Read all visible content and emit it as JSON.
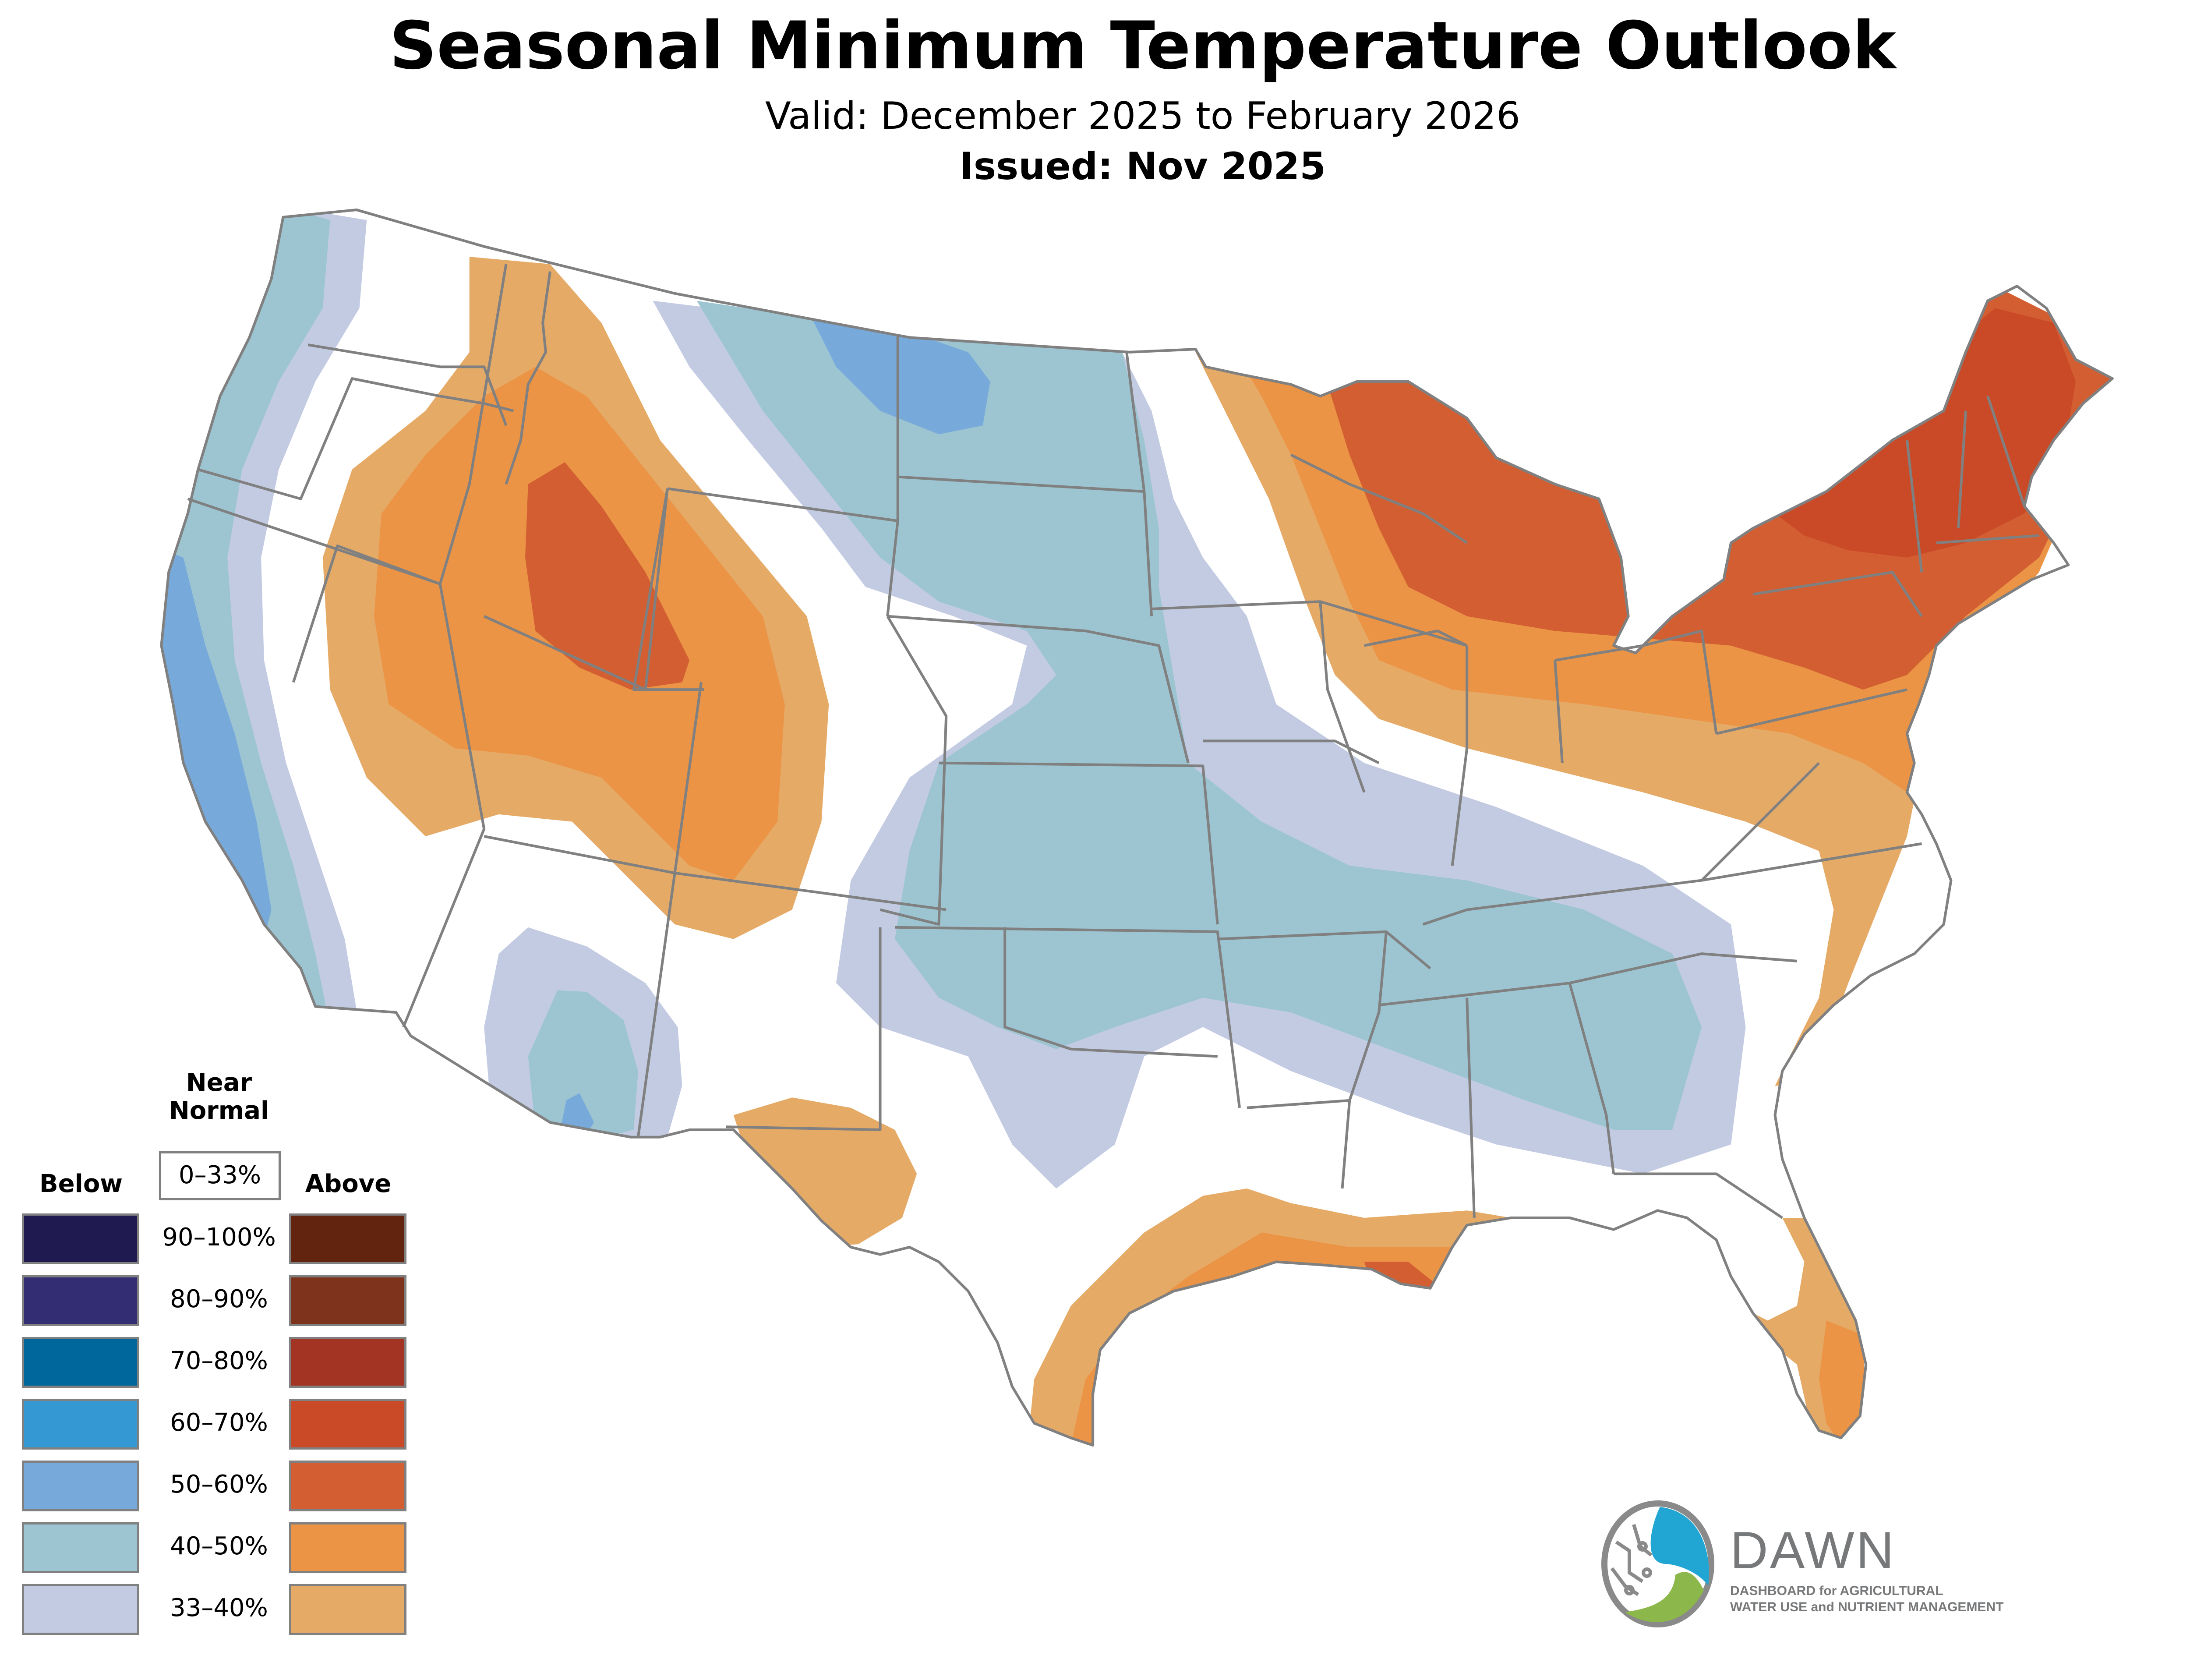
{
  "header": {
    "title": "Seasonal Minimum Temperature Outlook",
    "valid": "Valid: December 2025 to February 2026",
    "issued": "Issued: Nov 2025"
  },
  "legend": {
    "near_normal_heading_line1": "Near",
    "near_normal_heading_line2": "Normal",
    "near_normal_range": "0–33%",
    "below_heading": "Below",
    "above_heading": "Above",
    "rows": [
      {
        "range": "90–100%",
        "below_color": "#1f1a4f",
        "above_color": "#62230f"
      },
      {
        "range": "80–90%",
        "below_color": "#332d73",
        "above_color": "#7e341c"
      },
      {
        "range": "70–80%",
        "below_color": "#00679c",
        "above_color": "#a33424"
      },
      {
        "range": "60–70%",
        "below_color": "#3498d3",
        "above_color": "#ca4a27"
      },
      {
        "range": "50–60%",
        "below_color": "#77aadb",
        "above_color": "#d25e32"
      },
      {
        "range": "40–50%",
        "below_color": "#9cc5d1",
        "above_color": "#eb9446"
      },
      {
        "range": "33–40%",
        "below_color": "#c3cbe3",
        "above_color": "#e6aa67"
      }
    ]
  },
  "map": {
    "region": "Contiguous United States",
    "border_color": "#808080",
    "regions": [
      {
        "name": "Pacific coast",
        "category": "Below",
        "max_probability": "50–60%"
      },
      {
        "name": "Northern Rockies / Great Basin",
        "category": "Above",
        "max_probability": "50–60%"
      },
      {
        "name": "Northern Plains to Southern Plains and Tennessee Valley",
        "category": "Below",
        "max_probability": "50–60%"
      },
      {
        "name": "Southern Arizona",
        "category": "Below",
        "max_probability": "50–60%"
      },
      {
        "name": "West Texas",
        "category": "Above",
        "max_probability": "33–40%"
      },
      {
        "name": "Gulf Coast",
        "category": "Above",
        "max_probability": "50–60%"
      },
      {
        "name": "Florida peninsula",
        "category": "Above",
        "max_probability": "40–50%"
      },
      {
        "name": "Great Lakes",
        "category": "Above",
        "max_probability": "50–60%"
      },
      {
        "name": "Northeast / New England",
        "category": "Above",
        "max_probability": "60–70%"
      },
      {
        "name": "Mid-Atlantic and Southeast coast",
        "category": "Above",
        "max_probability": "40–50%"
      }
    ]
  },
  "logo": {
    "icon": "dawn-logo-icon",
    "name": "DAWN",
    "line1": "DASHBOARD for AGRICULTURAL",
    "line2": "WATER USE and NUTRIENT MANAGEMENT",
    "colors": {
      "blue": "#21a6d3",
      "green": "#8cb74b",
      "gray": "#76787a"
    }
  }
}
